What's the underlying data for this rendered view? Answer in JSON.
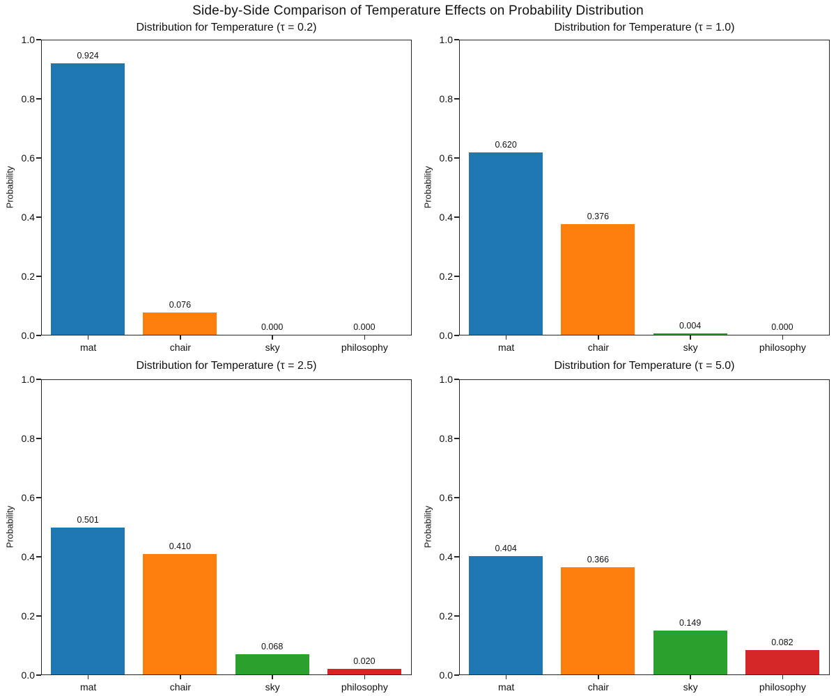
{
  "figure": {
    "suptitle": "Side-by-Side Comparison of Temperature Effects on Probability Distribution",
    "background": "#ffffff",
    "spine_color": "#262626"
  },
  "chart_data": [
    {
      "type": "bar",
      "title": "Distribution for Temperature (τ = 0.2)",
      "categories": [
        "mat",
        "chair",
        "sky",
        "philosophy"
      ],
      "values": [
        0.924,
        0.076,
        0.0,
        0.0
      ],
      "value_labels": [
        "0.924",
        "0.076",
        "0.000",
        "0.000"
      ],
      "bar_colors": [
        "#1f77b4",
        "#ff7f0e",
        "#2ca02c",
        "#d62728"
      ],
      "xlabel": "",
      "ylabel": "Probability",
      "ylim": [
        0.0,
        1.0
      ],
      "yticks": [
        "0.0",
        "0.2",
        "0.4",
        "0.6",
        "0.8",
        "1.0"
      ],
      "grid": false,
      "legend": false
    },
    {
      "type": "bar",
      "title": "Distribution for Temperature (τ = 1.0)",
      "categories": [
        "mat",
        "chair",
        "sky",
        "philosophy"
      ],
      "values": [
        0.62,
        0.376,
        0.004,
        0.0
      ],
      "value_labels": [
        "0.620",
        "0.376",
        "0.004",
        "0.000"
      ],
      "bar_colors": [
        "#1f77b4",
        "#ff7f0e",
        "#2ca02c",
        "#d62728"
      ],
      "xlabel": "",
      "ylabel": "Probability",
      "ylim": [
        0.0,
        1.0
      ],
      "yticks": [
        "0.0",
        "0.2",
        "0.4",
        "0.6",
        "0.8",
        "1.0"
      ],
      "grid": false,
      "legend": false
    },
    {
      "type": "bar",
      "title": "Distribution for Temperature (τ = 2.5)",
      "categories": [
        "mat",
        "chair",
        "sky",
        "philosophy"
      ],
      "values": [
        0.501,
        0.41,
        0.068,
        0.02
      ],
      "value_labels": [
        "0.501",
        "0.410",
        "0.068",
        "0.020"
      ],
      "bar_colors": [
        "#1f77b4",
        "#ff7f0e",
        "#2ca02c",
        "#d62728"
      ],
      "xlabel": "",
      "ylabel": "Probability",
      "ylim": [
        0.0,
        1.0
      ],
      "yticks": [
        "0.0",
        "0.2",
        "0.4",
        "0.6",
        "0.8",
        "1.0"
      ],
      "grid": false,
      "legend": false
    },
    {
      "type": "bar",
      "title": "Distribution for Temperature (τ = 5.0)",
      "categories": [
        "mat",
        "chair",
        "sky",
        "philosophy"
      ],
      "values": [
        0.404,
        0.366,
        0.149,
        0.082
      ],
      "value_labels": [
        "0.404",
        "0.366",
        "0.149",
        "0.082"
      ],
      "bar_colors": [
        "#1f77b4",
        "#ff7f0e",
        "#2ca02c",
        "#d62728"
      ],
      "xlabel": "",
      "ylabel": "Probability",
      "ylim": [
        0.0,
        1.0
      ],
      "yticks": [
        "0.0",
        "0.2",
        "0.4",
        "0.6",
        "0.8",
        "1.0"
      ],
      "grid": false,
      "legend": false
    }
  ]
}
